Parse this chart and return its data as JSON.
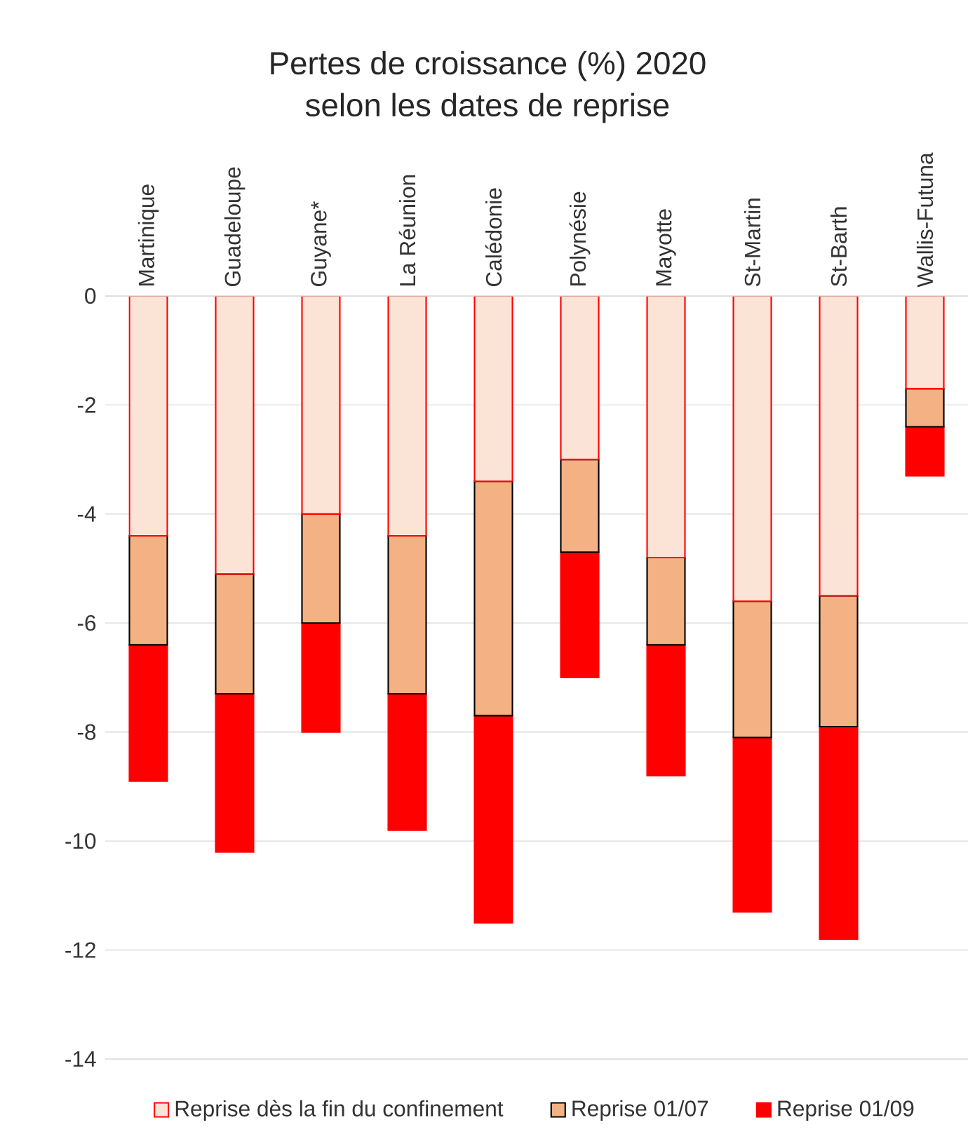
{
  "chart_data": {
    "type": "bar",
    "title": "Pertes de croissance (%) 2020\nselon les dates de reprise",
    "stacked": true,
    "categories": [
      "Martinique",
      "Guadeloupe",
      "Guyane*",
      "La Réunion",
      "Calédonie",
      "Polynésie",
      "Mayotte",
      "St-Martin",
      "St-Barth",
      "Wallis-Futuna"
    ],
    "series": [
      {
        "name": "Reprise dès la fin du confinement",
        "color": "#fbe3d6",
        "values": [
          -4.4,
          -5.1,
          -4.0,
          -4.4,
          -3.4,
          -3.0,
          -4.8,
          -5.6,
          -5.5,
          -1.7
        ]
      },
      {
        "name": "Reprise 01/07",
        "color": "#f4b183",
        "values": [
          -2.0,
          -2.2,
          -2.0,
          -2.9,
          -4.3,
          -1.7,
          -1.6,
          -2.5,
          -2.4,
          -0.7
        ]
      },
      {
        "name": "Reprise 01/09",
        "color": "#ff0000",
        "values": [
          -2.5,
          -2.9,
          -2.0,
          -2.5,
          -3.8,
          -2.3,
          -2.4,
          -3.2,
          -3.9,
          -0.9
        ]
      }
    ],
    "ylim": [
      -14,
      0
    ],
    "yticks": [
      0,
      -2,
      -4,
      -6,
      -8,
      -10,
      -12,
      -14
    ],
    "grid": "y",
    "legend": "bottom"
  }
}
